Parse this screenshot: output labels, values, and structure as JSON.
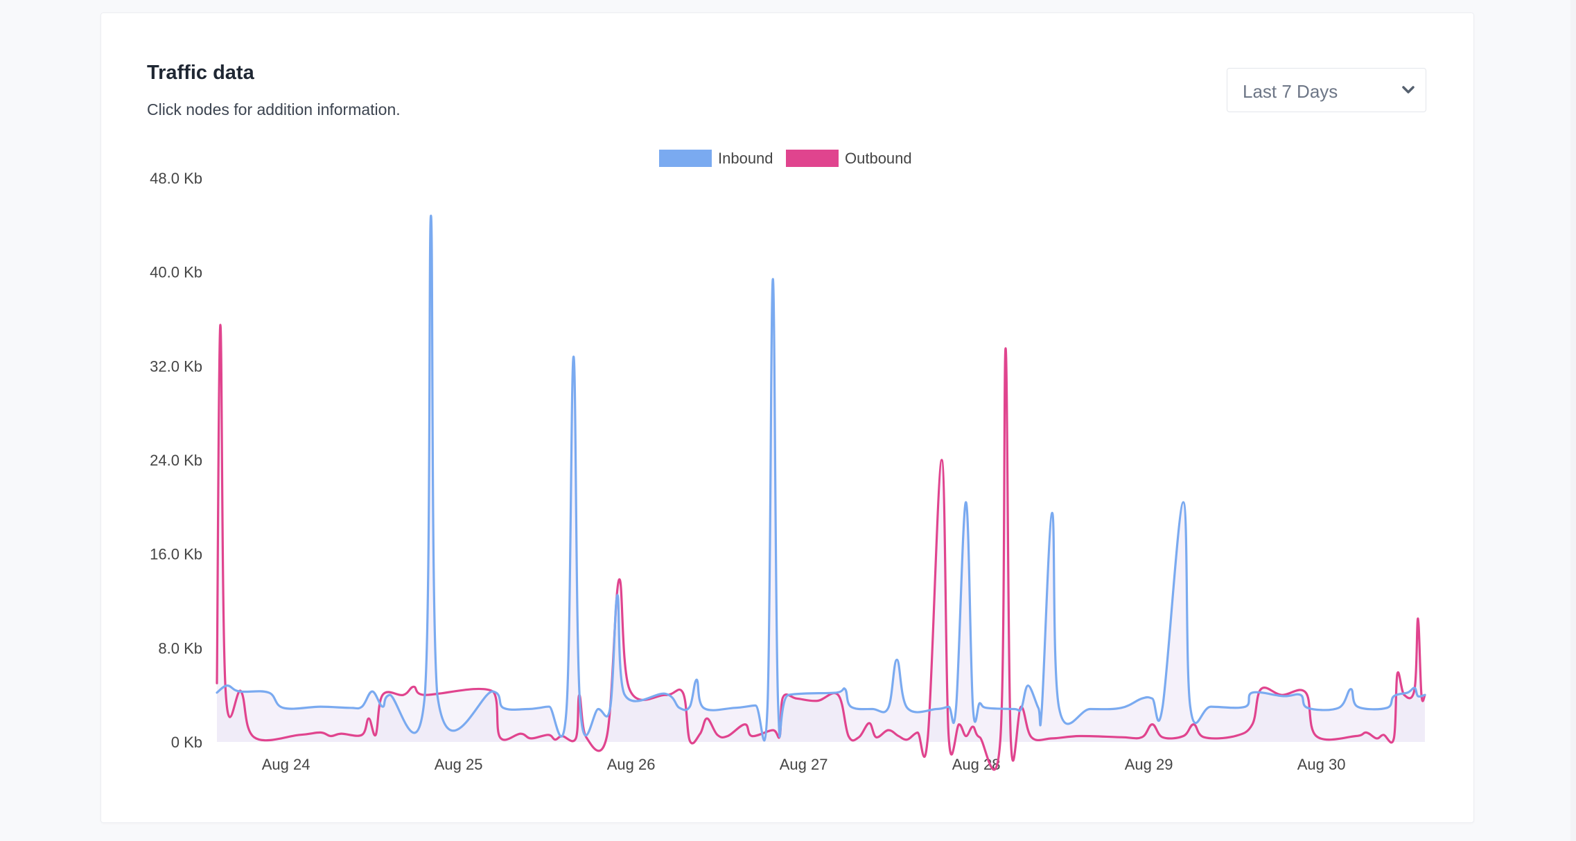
{
  "card": {
    "title": "Traffic data",
    "subtitle": "Click nodes for addition information."
  },
  "range_select": {
    "selected": "Last 7 Days",
    "icon": "chevron-down-icon"
  },
  "colors": {
    "inbound": "#7aaaf0",
    "outbound": "#e0448e",
    "fill": "#ece6f6",
    "axis_text": "#444444"
  },
  "chart_data": {
    "type": "line",
    "title": "",
    "xlabel": "",
    "ylabel": "",
    "ylim": [
      0,
      48
    ],
    "y_unit": "Kb",
    "y_ticks": [
      "0 Kb",
      "8.0 Kb",
      "16.0 Kb",
      "24.0 Kb",
      "32.0 Kb",
      "40.0 Kb",
      "48.0 Kb"
    ],
    "y_tick_values": [
      0,
      8,
      16,
      24,
      32,
      40,
      48
    ],
    "x_ticks": [
      "Aug 24",
      "Aug 25",
      "Aug 26",
      "Aug 27",
      "Aug 28",
      "Aug 29",
      "Aug 30"
    ],
    "xlim": [
      "Aug 23 14:24",
      "Aug 30 14:24"
    ],
    "grid": false,
    "legend": "top-center",
    "area_fill": true,
    "series": [
      {
        "name": "Inbound",
        "points": [
          [
            "Aug 23 14:24",
            4.2
          ],
          [
            "Aug 23 15:50",
            4.8
          ],
          [
            "Aug 23 17:31",
            4.3
          ],
          [
            "Aug 23 21:36",
            4.2
          ],
          [
            "Aug 23 23:38",
            2.9
          ],
          [
            "Aug 24 04:48",
            3.0
          ],
          [
            "Aug 24 08:53",
            2.9
          ],
          [
            "Aug 24 10:34",
            3.0
          ],
          [
            "Aug 24 12:00",
            4.3
          ],
          [
            "Aug 24 13:26",
            3.0
          ],
          [
            "Aug 24 14:24",
            4.0
          ],
          [
            "Aug 24 19:19",
            4.0
          ],
          [
            "Aug 24 20:10",
            44.8
          ],
          [
            "Aug 24 21:02",
            4.1
          ],
          [
            "Aug 25 04:48",
            4.3
          ],
          [
            "Aug 25 06:14",
            2.9
          ],
          [
            "Aug 25 09:36",
            2.8
          ],
          [
            "Aug 25 11:17",
            2.9
          ],
          [
            "Aug 25 12:38",
            3.0
          ],
          [
            "Aug 25 15:01",
            2.8
          ],
          [
            "Aug 25 16:00",
            32.8
          ],
          [
            "Aug 25 16:55",
            3.0
          ],
          [
            "Aug 25 19:26",
            2.8
          ],
          [
            "Aug 25 21:07",
            3.0
          ],
          [
            "Aug 25 22:05",
            12.5
          ],
          [
            "Aug 25 23:02",
            4.1
          ],
          [
            "Aug 26 04:48",
            4.1
          ],
          [
            "Aug 26 06:43",
            2.9
          ],
          [
            "Aug 26 08:10",
            3.0
          ],
          [
            "Aug 26 09:07",
            5.3
          ],
          [
            "Aug 26 10:05",
            2.9
          ],
          [
            "Aug 26 14:24",
            2.9
          ],
          [
            "Aug 26 17:17",
            3.1
          ],
          [
            "Aug 26 18:58",
            3.0
          ],
          [
            "Aug 26 19:43",
            39.4
          ],
          [
            "Aug 26 20:27",
            3.1
          ],
          [
            "Aug 26 21:53",
            4.0
          ],
          [
            "Aug 27 04:34",
            4.2
          ],
          [
            "Aug 27 05:46",
            4.5
          ],
          [
            "Aug 27 06:34",
            3.0
          ],
          [
            "Aug 27 09:36",
            2.8
          ],
          [
            "Aug 27 11:46",
            2.9
          ],
          [
            "Aug 27 12:58",
            7.0
          ],
          [
            "Aug 27 14:24",
            2.9
          ],
          [
            "Aug 27 18:29",
            2.8
          ],
          [
            "Aug 27 20:10",
            3.0
          ],
          [
            "Aug 27 21:12",
            3.0
          ],
          [
            "Aug 27 22:34",
            20.4
          ],
          [
            "Aug 27 23:32",
            3.0
          ],
          [
            "Aug 28 00:29",
            3.3
          ],
          [
            "Aug 28 01:26",
            2.9
          ],
          [
            "Aug 28 05:17",
            2.8
          ],
          [
            "Aug 28 06:14",
            2.8
          ],
          [
            "Aug 28 07:12",
            4.8
          ],
          [
            "Aug 28 08:38",
            2.9
          ],
          [
            "Aug 28 09:07",
            2.8
          ],
          [
            "Aug 28 10:34",
            19.5
          ],
          [
            "Aug 28 11:31",
            2.9
          ],
          [
            "Aug 28 15:50",
            2.8
          ],
          [
            "Aug 28 20:10",
            2.9
          ],
          [
            "Aug 28 23:02",
            3.7
          ],
          [
            "Aug 29 00:29",
            3.7
          ],
          [
            "Aug 29 01:55",
            3.0
          ],
          [
            "Aug 29 04:48",
            20.4
          ],
          [
            "Aug 29 05:46",
            3.0
          ],
          [
            "Aug 29 08:38",
            3.0
          ],
          [
            "Aug 29 13:26",
            3.0
          ],
          [
            "Aug 29 14:24",
            4.2
          ],
          [
            "Aug 29 18:43",
            3.9
          ],
          [
            "Aug 29 21:07",
            4.0
          ],
          [
            "Aug 29 22:05",
            2.9
          ],
          [
            "Aug 30 02:24",
            2.9
          ],
          [
            "Aug 30 04:05",
            4.5
          ],
          [
            "Aug 30 05:02",
            3.0
          ],
          [
            "Aug 30 09:07",
            2.9
          ],
          [
            "Aug 30 10:05",
            3.9
          ],
          [
            "Aug 30 12:00",
            4.2
          ],
          [
            "Aug 30 12:58",
            4.6
          ],
          [
            "Aug 30 13:26",
            3.9
          ],
          [
            "Aug 30 14:24",
            4.0
          ]
        ]
      },
      {
        "name": "Outbound",
        "points": [
          [
            "Aug 23 14:24",
            5.0
          ],
          [
            "Aug 23 14:53",
            35.5
          ],
          [
            "Aug 23 15:36",
            4.5
          ],
          [
            "Aug 23 17:46",
            4.3
          ],
          [
            "Aug 23 19:34",
            0.4
          ],
          [
            "Aug 24 01:55",
            0.6
          ],
          [
            "Aug 24 04:48",
            0.8
          ],
          [
            "Aug 24 06:14",
            0.5
          ],
          [
            "Aug 24 07:41",
            0.7
          ],
          [
            "Aug 24 10:34",
            0.6
          ],
          [
            "Aug 24 11:31",
            2.0
          ],
          [
            "Aug 24 12:29",
            0.6
          ],
          [
            "Aug 24 13:26",
            4.0
          ],
          [
            "Aug 24 16:19",
            4.0
          ],
          [
            "Aug 24 17:46",
            4.7
          ],
          [
            "Aug 24 19:12",
            4.0
          ],
          [
            "Aug 25 04:48",
            4.3
          ],
          [
            "Aug 25 05:46",
            0.4
          ],
          [
            "Aug 25 08:38",
            0.7
          ],
          [
            "Aug 25 10:05",
            0.3
          ],
          [
            "Aug 25 12:29",
            0.6
          ],
          [
            "Aug 25 13:26",
            0.2
          ],
          [
            "Aug 25 14:24",
            0.5
          ],
          [
            "Aug 25 16:19",
            0.3
          ],
          [
            "Aug 25 16:48",
            4.0
          ],
          [
            "Aug 25 17:46",
            0.4
          ],
          [
            "Aug 25 20:38",
            0.5
          ],
          [
            "Aug 25 22:19",
            13.8
          ],
          [
            "Aug 25 23:46",
            4.5
          ],
          [
            "Aug 26 04:48",
            4.0
          ],
          [
            "Aug 26 07:12",
            4.2
          ],
          [
            "Aug 26 08:10",
            0.1
          ],
          [
            "Aug 26 09:36",
            0.7
          ],
          [
            "Aug 26 10:34",
            2.0
          ],
          [
            "Aug 26 12:00",
            0.6
          ],
          [
            "Aug 26 13:26",
            0.5
          ],
          [
            "Aug 26 15:50",
            1.5
          ],
          [
            "Aug 26 16:48",
            0.5
          ],
          [
            "Aug 26 19:43",
            1.0
          ],
          [
            "Aug 26 20:41",
            0.5
          ],
          [
            "Aug 26 21:07",
            3.8
          ],
          [
            "Aug 26 23:02",
            3.7
          ],
          [
            "Aug 27 01:55",
            3.5
          ],
          [
            "Aug 27 04:48",
            4.0
          ],
          [
            "Aug 27 06:14",
            0.5
          ],
          [
            "Aug 27 07:41",
            0.4
          ],
          [
            "Aug 27 09:07",
            1.6
          ],
          [
            "Aug 27 10:05",
            0.4
          ],
          [
            "Aug 27 11:46",
            1.0
          ],
          [
            "Aug 27 13:12",
            0.5
          ],
          [
            "Aug 27 14:24",
            0.2
          ],
          [
            "Aug 27 15:50",
            0.8
          ],
          [
            "Aug 27 17:17",
            0.5
          ],
          [
            "Aug 27 19:12",
            24.0
          ],
          [
            "Aug 27 20:10",
            0.5
          ],
          [
            "Aug 27 21:36",
            1.5
          ],
          [
            "Aug 27 22:34",
            0.5
          ],
          [
            "Aug 27 23:32",
            1.3
          ],
          [
            "Aug 28 00:29",
            0.4
          ],
          [
            "Aug 28 03:22",
            0.3
          ],
          [
            "Aug 28 04:05",
            33.5
          ],
          [
            "Aug 28 04:48",
            0.3
          ],
          [
            "Aug 28 06:14",
            3.0
          ],
          [
            "Aug 28 07:41",
            0.4
          ],
          [
            "Aug 28 10:34",
            0.3
          ],
          [
            "Aug 28 14:24",
            0.5
          ],
          [
            "Aug 28 20:10",
            0.4
          ],
          [
            "Aug 28 23:02",
            0.4
          ],
          [
            "Aug 29 00:29",
            1.5
          ],
          [
            "Aug 29 01:55",
            0.4
          ],
          [
            "Aug 29 04:48",
            0.5
          ],
          [
            "Aug 29 06:14",
            1.5
          ],
          [
            "Aug 29 07:41",
            0.4
          ],
          [
            "Aug 29 12:00",
            0.5
          ],
          [
            "Aug 29 14:24",
            1.5
          ],
          [
            "Aug 29 15:36",
            4.5
          ],
          [
            "Aug 29 18:29",
            4.0
          ],
          [
            "Aug 29 21:50",
            4.2
          ],
          [
            "Aug 29 23:17",
            0.5
          ],
          [
            "Aug 30 04:48",
            0.5
          ],
          [
            "Aug 30 06:14",
            0.8
          ],
          [
            "Aug 30 07:41",
            0.3
          ],
          [
            "Aug 30 08:38",
            0.6
          ],
          [
            "Aug 30 10:05",
            0.3
          ],
          [
            "Aug 30 10:34",
            5.8
          ],
          [
            "Aug 30 11:31",
            4.0
          ],
          [
            "Aug 30 12:58",
            4.5
          ],
          [
            "Aug 30 13:26",
            10.5
          ],
          [
            "Aug 30 13:55",
            4.0
          ],
          [
            "Aug 30 14:24",
            4.0
          ]
        ]
      }
    ]
  }
}
